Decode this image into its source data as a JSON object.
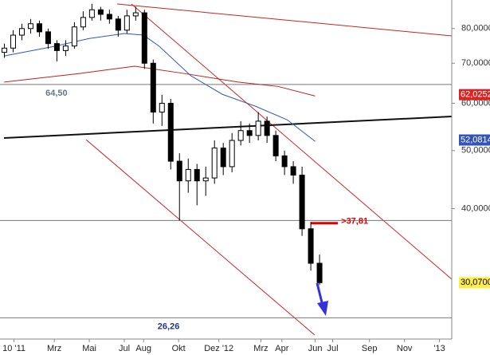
{
  "chart_data": {
    "type": "candlestick",
    "log_scale": true,
    "ylim": [
      24.2,
      89.3
    ],
    "xlim": [
      -1.1,
      24.7
    ],
    "yticks": [
      {
        "value": 40,
        "label": "40,0000"
      },
      {
        "value": 50,
        "label": "50,0000"
      },
      {
        "value": 60,
        "label": "60,0000"
      },
      {
        "value": 70,
        "label": "70,0000"
      },
      {
        "value": 80,
        "label": "80,0000"
      }
    ],
    "xticks": [
      {
        "value": -0.3,
        "label": "10 '11"
      },
      {
        "value": 2,
        "label": "Mrz"
      },
      {
        "value": 4,
        "label": "Mai"
      },
      {
        "value": 6,
        "label": "Jul"
      },
      {
        "value": 7.1,
        "label": "Aug"
      },
      {
        "value": 9.1,
        "label": "Okt"
      },
      {
        "value": 11.4,
        "label": "Dez '12"
      },
      {
        "value": 13.8,
        "label": "Mrz"
      },
      {
        "value": 15,
        "label": "Apr"
      },
      {
        "value": 16.9,
        "label": "Jun"
      },
      {
        "value": 17.9,
        "label": "Jul"
      },
      {
        "value": 20,
        "label": "Sep"
      },
      {
        "value": 22,
        "label": "Nov"
      },
      {
        "value": 24,
        "label": "'13"
      }
    ],
    "up_color": "#ffffff",
    "down_color": "#000000",
    "x": [
      -0.85,
      -0.35,
      0.15,
      0.65,
      1.15,
      1.65,
      2.15,
      2.65,
      3.15,
      3.65,
      4.15,
      4.65,
      5.15,
      5.65,
      6.15,
      6.65,
      7.15,
      7.65,
      8.15,
      8.65,
      9.15,
      9.65,
      10.15,
      10.65,
      11.15,
      11.65,
      12.15,
      12.65,
      13.15,
      13.65,
      14.15,
      14.65,
      15.15,
      15.65,
      16.15,
      16.65,
      17.15
    ],
    "open": [
      73.0,
      74.2,
      78.0,
      80.0,
      81.5,
      79.0,
      75.5,
      73.5,
      74.8,
      80.5,
      83.5,
      86.0,
      84.5,
      83.0,
      79.5,
      84.0,
      85.0,
      70.0,
      58.0,
      60.0,
      48.0,
      44.5,
      46.5,
      44.5,
      45.0,
      50.5,
      47.0,
      52.0,
      54.0,
      53.0,
      56.0,
      53.0,
      49.0,
      47.0,
      45.5,
      37.0,
      32.4
    ],
    "high": [
      75.5,
      79.5,
      81.5,
      83.0,
      82.5,
      80.0,
      76.5,
      76.5,
      82.0,
      85.5,
      88.0,
      87.0,
      86.0,
      84.0,
      86.0,
      87.0,
      86.0,
      71.0,
      62.0,
      61.0,
      49.5,
      48.5,
      47.5,
      47.0,
      52.0,
      51.5,
      53.5,
      56.0,
      55.5,
      58.0,
      57.0,
      54.0,
      50.0,
      48.0,
      47.0,
      38.0,
      33.5
    ],
    "low": [
      71.5,
      73.0,
      76.5,
      78.5,
      77.5,
      74.0,
      70.5,
      72.0,
      74.0,
      79.5,
      82.5,
      82.5,
      81.5,
      77.5,
      78.5,
      82.5,
      68.5,
      55.5,
      55.0,
      46.5,
      38.2,
      42.5,
      40.5,
      42.0,
      44.0,
      45.5,
      46.0,
      51.0,
      51.5,
      52.0,
      51.5,
      48.0,
      45.5,
      44.0,
      36.0,
      31.5,
      29.8
    ],
    "close": [
      74.2,
      78.0,
      80.0,
      81.5,
      79.0,
      75.5,
      73.5,
      74.8,
      80.5,
      83.5,
      86.0,
      84.5,
      83.0,
      79.5,
      84.0,
      85.0,
      70.0,
      58.0,
      60.0,
      48.0,
      44.5,
      46.5,
      44.5,
      45.0,
      50.5,
      47.0,
      52.0,
      54.0,
      53.0,
      56.0,
      53.0,
      49.0,
      47.0,
      45.5,
      37.0,
      32.4,
      30.07
    ],
    "overlays": [
      {
        "color": "#3355bb",
        "x": [
          -0.86,
          2,
          4,
          6,
          7.1,
          8,
          9.8,
          11.6,
          13.5,
          15.3,
          16.9
        ],
        "values": [
          72.0,
          74.7,
          77.0,
          78.5,
          78.0,
          74.7,
          66.7,
          62.1,
          59.3,
          56.3,
          51.8
        ]
      },
      {
        "color": "#bb2222",
        "x": [
          -0.86,
          3.45,
          6.6,
          9.4,
          12.5,
          14.8,
          16.9
        ],
        "values": [
          65.1,
          67.3,
          69.2,
          67.3,
          65.1,
          64.0,
          61.7
        ]
      }
    ],
    "levels": [
      {
        "value": 64.5,
        "label": "64,50",
        "color": "#777777",
        "label_color": "#667788",
        "label_x": 1.5
      },
      {
        "value": 26.26,
        "label": "26,26",
        "color": "#777777",
        "label_color": "#223388",
        "label_x": 7.9
      },
      {
        "value": 38.2,
        "color": "#777777"
      },
      {
        "value": 37.81,
        "label": ">37,81",
        "color": "#dd0000",
        "label_color": "#dd0000",
        "x_range": [
          16.65,
          18.2
        ]
      }
    ],
    "price_labels": [
      {
        "value": 62.0252,
        "label": "62,0252",
        "bg": "#dd2222",
        "fg": "#ffffff"
      },
      {
        "value": 52.0814,
        "label": "52,0814",
        "bg": "#3355bb",
        "fg": "#ffffff"
      },
      {
        "value": 30.07,
        "label": "30,0700",
        "bg": "#ffee44",
        "fg": "#000000"
      }
    ]
  }
}
